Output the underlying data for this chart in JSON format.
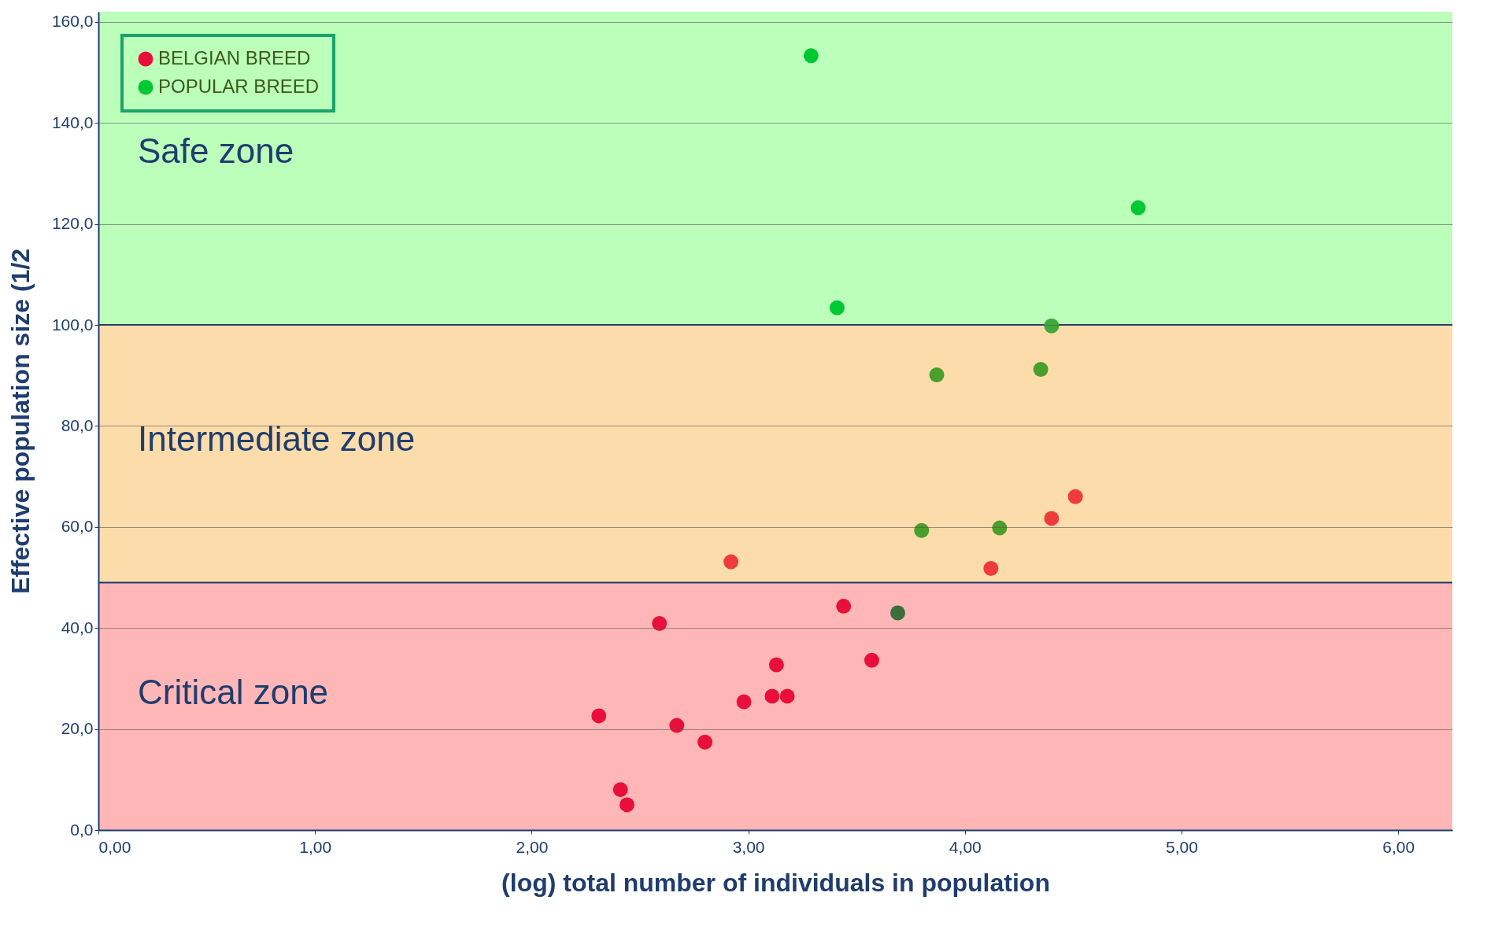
{
  "chart_data": {
    "type": "scatter",
    "xlabel": "(log) total number of individuals in population",
    "ylabel": "Effective population size (1/2",
    "xlim": [
      0,
      6.25
    ],
    "ylim": [
      0,
      162
    ],
    "xticks": [
      {
        "value": 0,
        "label": "0,00"
      },
      {
        "value": 1,
        "label": "1,00"
      },
      {
        "value": 2,
        "label": "2,00"
      },
      {
        "value": 3,
        "label": "3,00"
      },
      {
        "value": 4,
        "label": "4,00"
      },
      {
        "value": 5,
        "label": "5,00"
      },
      {
        "value": 6,
        "label": "6,00"
      }
    ],
    "yticks": [
      {
        "value": 0,
        "label": "0,0"
      },
      {
        "value": 20,
        "label": "20,0"
      },
      {
        "value": 40,
        "label": "40,0"
      },
      {
        "value": 60,
        "label": "60,0"
      },
      {
        "value": 80,
        "label": "80,0"
      },
      {
        "value": 100,
        "label": "100,0"
      },
      {
        "value": 120,
        "label": "120,0"
      },
      {
        "value": 140,
        "label": "140,0"
      },
      {
        "value": 160,
        "label": "160,0"
      }
    ],
    "grid": "y",
    "legend": "top left",
    "marker": "circle",
    "bands": [
      {
        "axis": "y",
        "from": 0,
        "to": 49,
        "label": "Critical zone",
        "color": "#ffb6b6"
      },
      {
        "axis": "y",
        "from": 49,
        "to": 100,
        "label": "Intermediate zone",
        "color": "#fcdcaa"
      },
      {
        "axis": "y",
        "from": 100,
        "to": 162,
        "label": "Safe zone",
        "color": "#bbffbb"
      }
    ],
    "ref_lines": [
      {
        "axis": "y",
        "value": 49,
        "color": "#1f3d6e"
      },
      {
        "axis": "y",
        "value": 100,
        "color": "#1f3d6e"
      }
    ],
    "series": [
      {
        "name": "BELGIAN BREED",
        "color": "#e8103a",
        "x": [
          4.51,
          4.4,
          2.92,
          4.12,
          3.44,
          2.59,
          3.13,
          3.57,
          2.98,
          3.11,
          3.18,
          2.31,
          2.67,
          2.8,
          2.41,
          2.44
        ],
        "values": [
          66.0,
          61.7,
          53.1,
          51.8,
          44.3,
          40.9,
          32.7,
          33.6,
          25.4,
          26.5,
          26.5,
          22.6,
          20.7,
          17.4,
          8.0,
          5.0
        ],
        "colors": [
          "#ee3b3b",
          "#ee3b3b",
          "#ee3b3b",
          "#ee3b3b",
          "#e8103a",
          "#e8103a",
          "#e8103a",
          "#e8103a",
          "#e8103a",
          "#e8103a",
          "#e8103a",
          "#e8103a",
          "#e8103a",
          "#e8103a",
          "#e8103a",
          "#e8103a"
        ]
      },
      {
        "name": "POPULAR BREED",
        "color": "#00c832",
        "x": [
          3.29,
          4.8,
          3.41,
          4.4,
          4.35,
          3.87,
          3.8,
          4.16,
          3.69
        ],
        "values": [
          153.3,
          123.2,
          103.4,
          99.8,
          91.2,
          90.1,
          59.3,
          59.8,
          43.0
        ],
        "colors": [
          "#00c832",
          "#00c832",
          "#00c832",
          "#3fa838",
          "#4a9e2a",
          "#4a9e2a",
          "#4a9e2a",
          "#4a9e2a",
          "#3a6e3a"
        ]
      }
    ]
  }
}
